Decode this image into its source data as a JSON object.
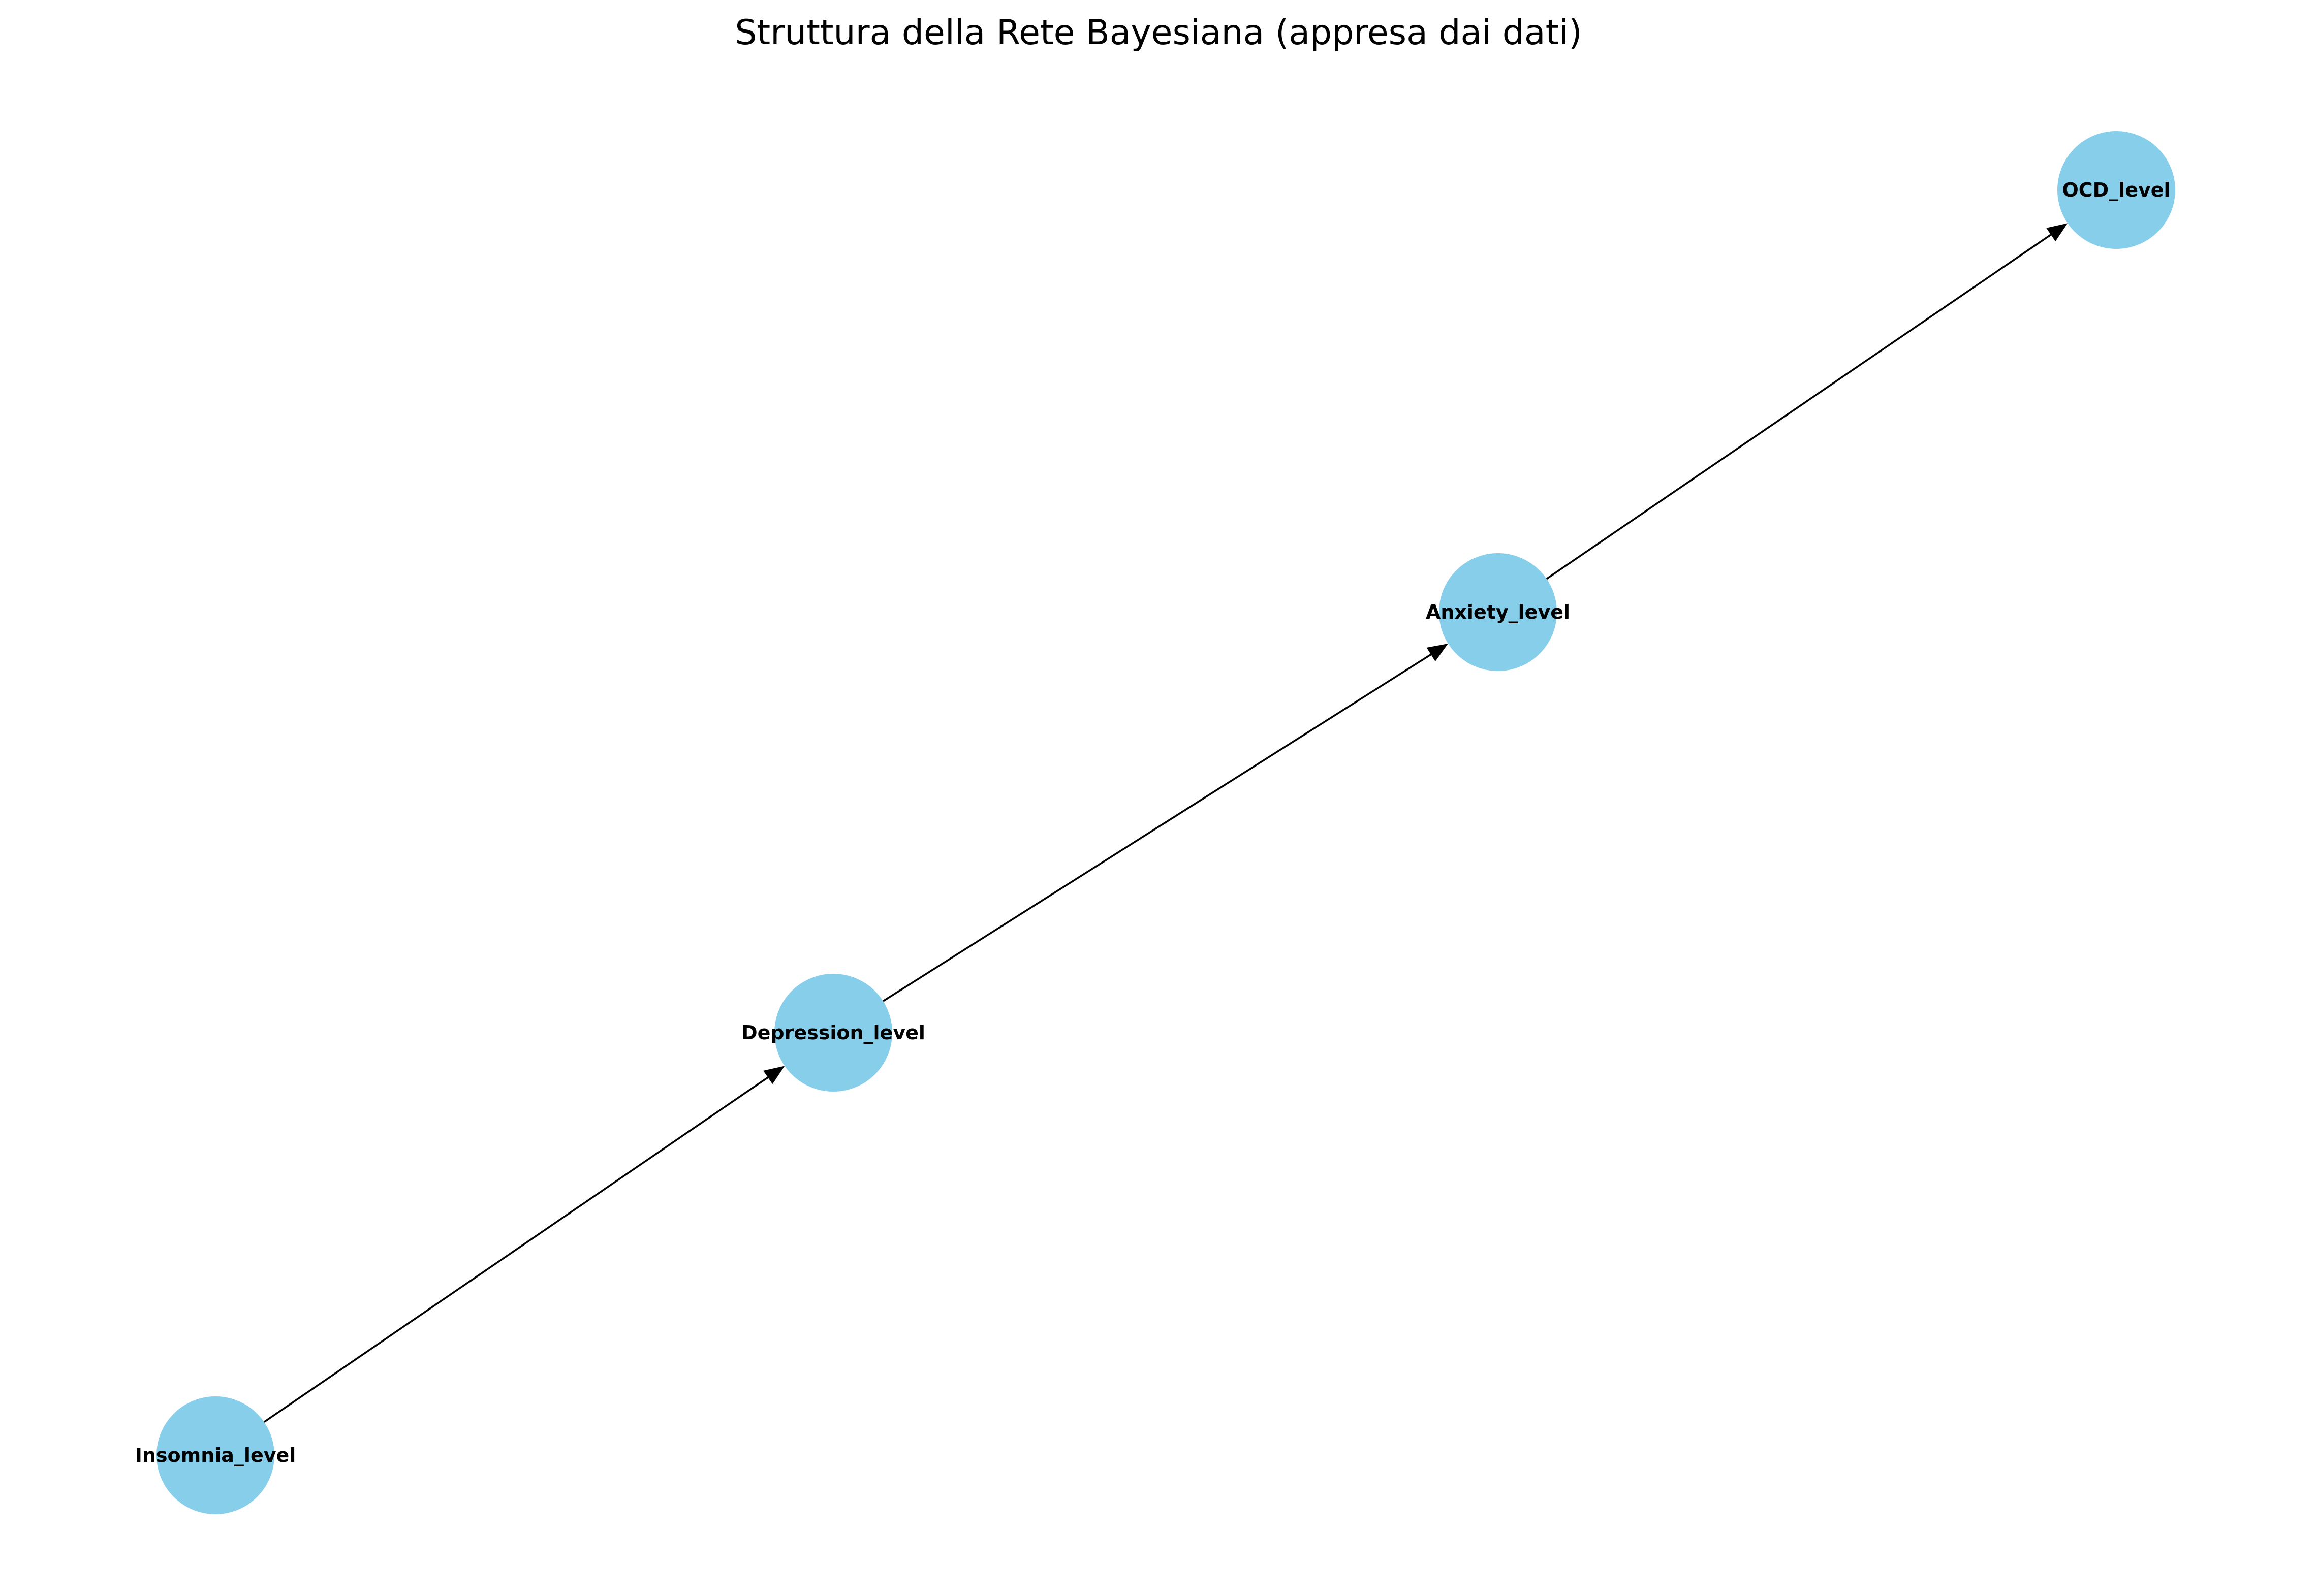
{
  "title": "Struttura della Rete Bayesiana (appresa dai dati)",
  "colors": {
    "node_fill": "#87CEEB",
    "edge": "#000000",
    "text": "#000000",
    "background": "#FFFFFF"
  },
  "nodes": [
    {
      "id": "insomnia",
      "label": "Insomnia_level"
    },
    {
      "id": "depression",
      "label": "Depression_level"
    },
    {
      "id": "anxiety",
      "label": "Anxiety_level"
    },
    {
      "id": "ocd",
      "label": "OCD_level"
    }
  ],
  "edges": [
    {
      "from": "insomnia",
      "to": "depression"
    },
    {
      "from": "depression",
      "to": "anxiety"
    },
    {
      "from": "anxiety",
      "to": "ocd"
    }
  ]
}
